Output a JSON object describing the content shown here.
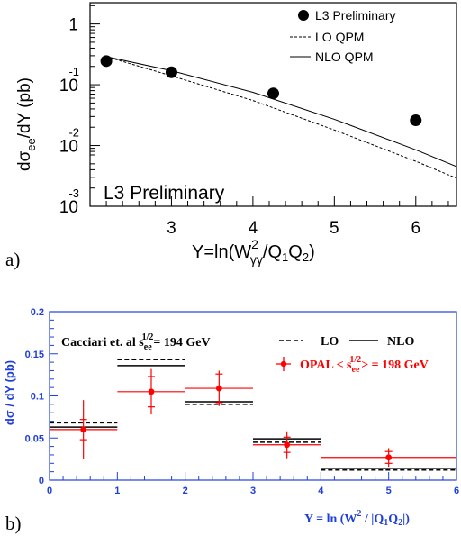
{
  "chart_data": [
    {
      "panel_label": "a)",
      "type": "scatter",
      "title": "",
      "inner_label": "L3 Preliminary",
      "xlabel": "Y=ln(W",
      "xlabel_sup": "2",
      "xlabel_sub": "γγ",
      "xlabel_tail": "/Q",
      "xlabel_q1": "1",
      "xlabel_q": "Q",
      "xlabel_q2": "2",
      "xlabel_close": ")",
      "ylabel": "dσ",
      "ylabel_sub": "ee",
      "ylabel_tail": "/dY   (pb)",
      "xlim": [
        2.0,
        6.5
      ],
      "ylim_log10": [
        -3,
        0.35
      ],
      "y_scale": "log",
      "x_ticks": [
        {
          "value": 3,
          "label": "3"
        },
        {
          "value": 4,
          "label": "4"
        },
        {
          "value": 5,
          "label": "5"
        },
        {
          "value": 6,
          "label": "6"
        }
      ],
      "y_ticks": [
        {
          "value": 1,
          "base": "1",
          "exp": ""
        },
        {
          "value": 0.1,
          "base": "10",
          "exp": "-1"
        },
        {
          "value": 0.01,
          "base": "10",
          "exp": "-2"
        },
        {
          "value": 0.001,
          "base": "10",
          "exp": "-3"
        }
      ],
      "legend": [
        "L3 Preliminary",
        "LO QPM",
        "NLO QPM"
      ],
      "legend_position": "top-right",
      "series": [
        {
          "name": "L3 Preliminary",
          "kind": "points",
          "x": [
            2.2,
            3.0,
            4.25,
            6.0
          ],
          "y": [
            0.245,
            0.16,
            0.072,
            0.026
          ]
        },
        {
          "name": "LO QPM",
          "kind": "line-dashed",
          "x": [
            2.2,
            3.0,
            4.0,
            5.0,
            6.0,
            6.5
          ],
          "y": [
            0.29,
            0.14,
            0.055,
            0.018,
            0.0055,
            0.0029
          ]
        },
        {
          "name": "NLO QPM",
          "kind": "line-solid",
          "x": [
            2.2,
            3.0,
            4.0,
            5.0,
            6.0,
            6.5
          ],
          "y": [
            0.29,
            0.17,
            0.075,
            0.027,
            0.0085,
            0.0045
          ]
        }
      ]
    },
    {
      "panel_label": "b)",
      "type": "scatter",
      "title": "",
      "xlabel": "Y = ln (W",
      "xlabel_sup": "2",
      "xlabel_mid": " / |Q",
      "xlabel_q1": "1",
      "xlabel_q": "Q",
      "xlabel_q2": "2",
      "xlabel_close": "|)",
      "ylabel": "dσ / dY (pb)",
      "xlim": [
        0,
        6
      ],
      "ylim": [
        0,
        0.2
      ],
      "x_ticks": [
        0,
        1,
        2,
        3,
        4,
        5,
        6
      ],
      "y_ticks": [
        {
          "value": 0,
          "label": "0"
        },
        {
          "value": 0.05,
          "label": "0.05"
        },
        {
          "value": 0.1,
          "label": "0.1"
        },
        {
          "value": 0.15,
          "label": "0.15"
        },
        {
          "value": 0.2,
          "label": "0.2"
        }
      ],
      "annotation": {
        "text": "Cacciari et. al s",
        "sub": "ee",
        "sup": "1/2",
        "tail": "= 194 GeV"
      },
      "legend_lo": "LO",
      "legend_nlo": "NLO",
      "legend_opal": {
        "prefix": "OPAL < s",
        "sub": "ee",
        "sup": "1/2",
        "tail": "> = 198 GeV"
      },
      "legend_position": "top-right",
      "colors": {
        "data": "#ff0000",
        "axis": "#1f3fd8",
        "theory": "#000000"
      },
      "bins": [
        {
          "lo": 0,
          "hi": 1,
          "lo_val": 0.068,
          "nlo_val": 0.063
        },
        {
          "lo": 1,
          "hi": 2,
          "lo_val": 0.143,
          "nlo_val": 0.136
        },
        {
          "lo": 2,
          "hi": 3,
          "lo_val": 0.09,
          "nlo_val": 0.093
        },
        {
          "lo": 3,
          "hi": 4,
          "lo_val": 0.045,
          "nlo_val": 0.049
        },
        {
          "lo": 4,
          "hi": 6,
          "lo_val": 0.012,
          "nlo_val": 0.014
        }
      ],
      "series": [
        {
          "name": "OPAL < s_ee^1/2 > = 198 GeV",
          "kind": "points-with-errors",
          "points": [
            {
              "x": 0.5,
              "xlo": 0,
              "xhi": 1,
              "y": 0.06,
              "stat": 0.012,
              "tot": 0.035
            },
            {
              "x": 1.5,
              "xlo": 1,
              "xhi": 2,
              "y": 0.105,
              "stat": 0.018,
              "tot": 0.027
            },
            {
              "x": 2.5,
              "xlo": 2,
              "xhi": 3,
              "y": 0.109,
              "stat": 0.017,
              "tot": 0.021
            },
            {
              "x": 3.5,
              "xlo": 3,
              "xhi": 4,
              "y": 0.042,
              "stat": 0.009,
              "tot": 0.016
            },
            {
              "x": 5.0,
              "xlo": 4,
              "xhi": 6,
              "y": 0.027,
              "stat": 0.007,
              "tot": 0.011
            }
          ]
        }
      ]
    }
  ]
}
